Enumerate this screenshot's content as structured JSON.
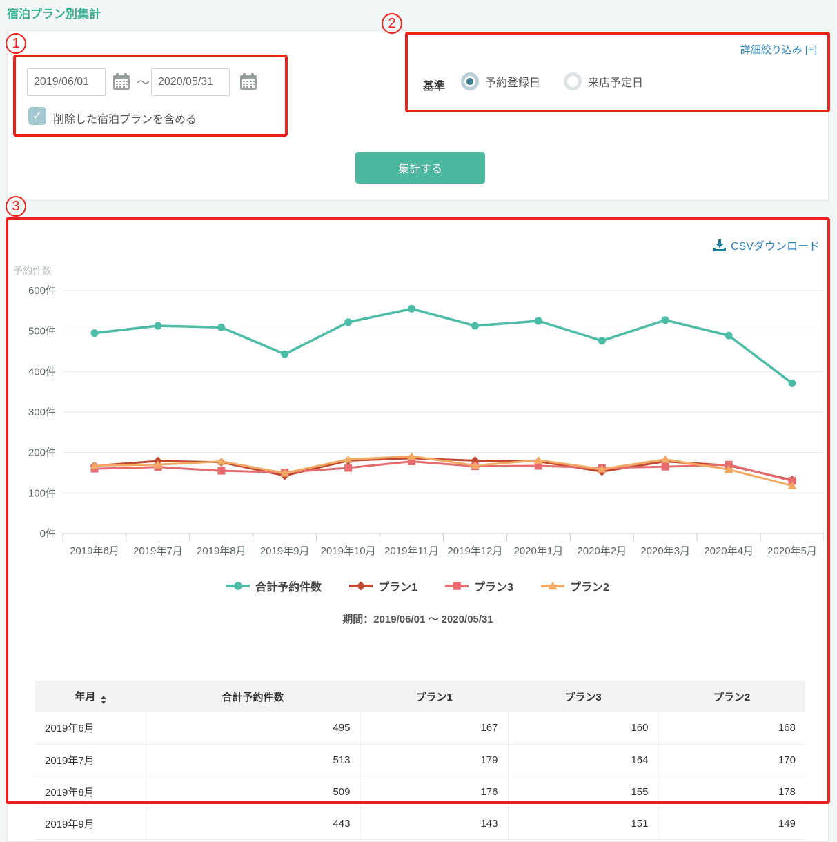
{
  "page": {
    "title": "宿泊プラン別集計"
  },
  "annotations": {
    "badge1": "1",
    "badge2": "2",
    "badge3": "3",
    "color": "#ee2019"
  },
  "filters": {
    "date_from": "2019/06/01",
    "date_separator": "～",
    "date_to": "2020/05/31",
    "checkbox_checked_mark": "✓",
    "checkbox_label": "削除した宿泊プランを含める",
    "detail_link": "詳細絞り込み [+]",
    "criteria_label": "基準",
    "radio_options": [
      {
        "label": "予約登録日",
        "selected": true
      },
      {
        "label": "来店予定日",
        "selected": false
      }
    ],
    "submit_label": "集計する"
  },
  "results": {
    "csv_label": "CSVダウンロード",
    "period_label": "期間：2019/06/01 ～ 2020/05/31"
  },
  "colors": {
    "accent": "#4cb8a0",
    "title": "#3bae92",
    "link": "#2f86bb",
    "annotation": "#ee2019"
  },
  "chart_data": {
    "type": "line",
    "ylabel": "予約件数",
    "ylim": [
      0,
      600
    ],
    "yticks": [
      0,
      100,
      200,
      300,
      400,
      500,
      600
    ],
    "ytick_suffix": "件",
    "grid": true,
    "legend_position": "bottom",
    "categories": [
      "2019年6月",
      "2019年7月",
      "2019年8月",
      "2019年9月",
      "2019年10月",
      "2019年11月",
      "2019年12月",
      "2020年1月",
      "2020年2月",
      "2020年3月",
      "2020年4月",
      "2020年5月"
    ],
    "series": [
      {
        "name": "合計予約件数",
        "color": "#4cbca6",
        "marker": "circle",
        "values": [
          495,
          513,
          509,
          443,
          522,
          555,
          513,
          525,
          476,
          527,
          489,
          371
        ]
      },
      {
        "name": "プラン1",
        "color": "#c1472f",
        "marker": "diamond",
        "values": [
          167,
          179,
          176,
          143,
          180,
          186,
          180,
          178,
          153,
          178,
          168,
          132
        ]
      },
      {
        "name": "プラン3",
        "color": "#e56b6f",
        "marker": "square",
        "values": [
          160,
          164,
          155,
          151,
          162,
          178,
          166,
          167,
          162,
          165,
          170,
          130
        ]
      },
      {
        "name": "プラン2",
        "color": "#f2a963",
        "marker": "triangle",
        "values": [
          168,
          170,
          178,
          149,
          183,
          191,
          168,
          181,
          159,
          183,
          158,
          118
        ]
      }
    ]
  },
  "table": {
    "columns": [
      "年月",
      "合計予約件数",
      "プラン1",
      "プラン3",
      "プラン2"
    ],
    "rows": [
      [
        "2019年6月",
        "495",
        "167",
        "160",
        "168"
      ],
      [
        "2019年7月",
        "513",
        "179",
        "164",
        "170"
      ],
      [
        "2019年8月",
        "509",
        "176",
        "155",
        "178"
      ],
      [
        "2019年9月",
        "443",
        "143",
        "151",
        "149"
      ]
    ]
  }
}
